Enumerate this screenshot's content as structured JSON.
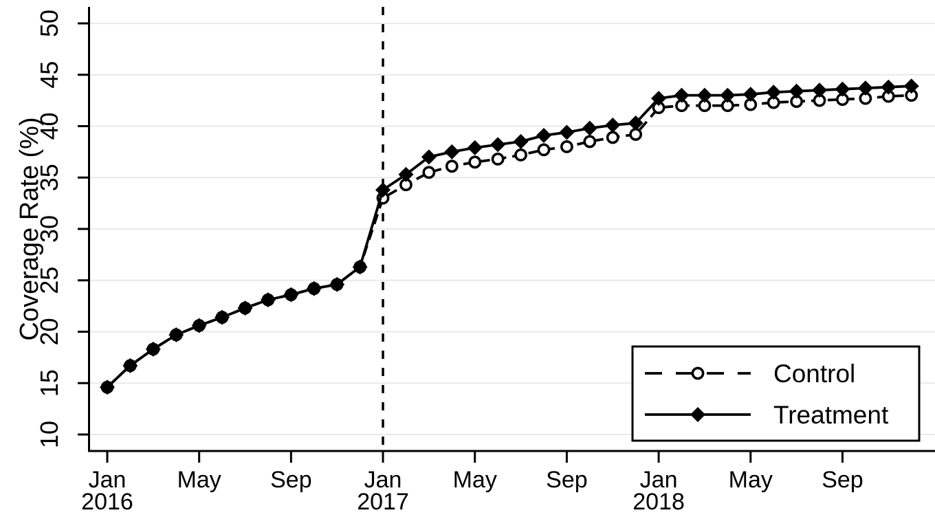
{
  "figure": {
    "background": "#ffffff",
    "line_color": "#000000",
    "grid_color": "#e8e8e8"
  },
  "chart_data": {
    "type": "line",
    "title": "",
    "xlabel": "",
    "ylabel": "Coverage Rate (%)",
    "x_unit": "month",
    "x": [
      "2016-01",
      "2016-02",
      "2016-03",
      "2016-04",
      "2016-05",
      "2016-06",
      "2016-07",
      "2016-08",
      "2016-09",
      "2016-10",
      "2016-11",
      "2016-12",
      "2017-01",
      "2017-02",
      "2017-03",
      "2017-04",
      "2017-05",
      "2017-06",
      "2017-07",
      "2017-08",
      "2017-09",
      "2017-10",
      "2017-11",
      "2017-12",
      "2018-01",
      "2018-02",
      "2018-03",
      "2018-04",
      "2018-05",
      "2018-06",
      "2018-07",
      "2018-08",
      "2018-09",
      "2018-10",
      "2018-11",
      "2018-12"
    ],
    "x_tick_labels": [
      {
        "index": 0,
        "label": "Jan",
        "year": "2016"
      },
      {
        "index": 4,
        "label": "May"
      },
      {
        "index": 8,
        "label": "Sep"
      },
      {
        "index": 12,
        "label": "Jan",
        "year": "2017"
      },
      {
        "index": 16,
        "label": "May"
      },
      {
        "index": 20,
        "label": "Sep"
      },
      {
        "index": 24,
        "label": "Jan",
        "year": "2018"
      },
      {
        "index": 28,
        "label": "May"
      },
      {
        "index": 32,
        "label": "Sep"
      }
    ],
    "ylim": [
      10,
      50
    ],
    "yticks": [
      10,
      15,
      20,
      25,
      30,
      35,
      40,
      45,
      50
    ],
    "grid": "horizontal",
    "reference_line": {
      "type": "vertical-dashed",
      "x": "2017-01",
      "x_index": 12
    },
    "legend": {
      "position": "lower-right",
      "border": true
    },
    "series": [
      {
        "name": "Control",
        "line_style": "dashed",
        "marker": "open-circle",
        "color": "#000000",
        "values": [
          14.6,
          16.7,
          18.3,
          19.7,
          20.6,
          21.4,
          22.3,
          23.1,
          23.6,
          24.2,
          24.6,
          26.3,
          33.0,
          34.3,
          35.5,
          36.1,
          36.5,
          36.8,
          37.2,
          37.7,
          38.0,
          38.5,
          38.9,
          39.2,
          41.8,
          42.0,
          42.0,
          42.0,
          42.1,
          42.3,
          42.4,
          42.5,
          42.6,
          42.7,
          42.9,
          43.0
        ]
      },
      {
        "name": "Treatment",
        "line_style": "solid",
        "marker": "filled-diamond",
        "color": "#000000",
        "values": [
          14.6,
          16.7,
          18.3,
          19.7,
          20.6,
          21.4,
          22.3,
          23.1,
          23.6,
          24.2,
          24.6,
          26.3,
          33.8,
          35.3,
          37.0,
          37.5,
          37.9,
          38.2,
          38.5,
          39.1,
          39.4,
          39.8,
          40.1,
          40.3,
          42.7,
          43.0,
          43.0,
          43.0,
          43.1,
          43.3,
          43.4,
          43.5,
          43.6,
          43.7,
          43.8,
          43.9
        ]
      }
    ]
  }
}
